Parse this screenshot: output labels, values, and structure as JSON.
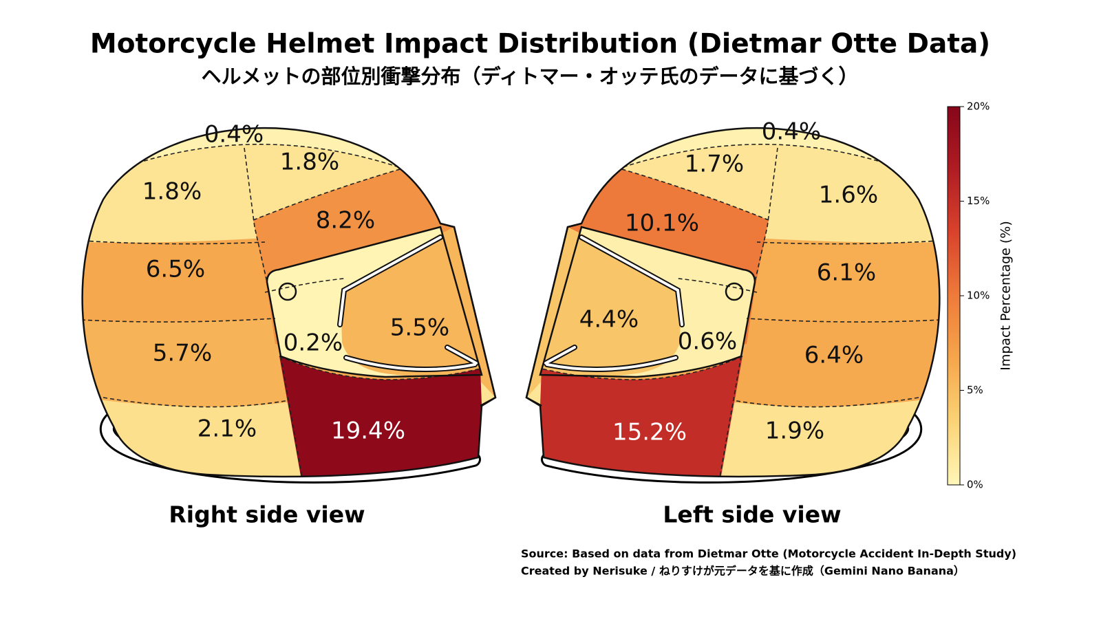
{
  "chart_data": {
    "type": "helmet-map",
    "title": "Motorcycle Helmet Impact Distribution (Dietmar Otte Data)",
    "subtitle": "ヘルメットの部位別衝撃分布（ディトマー・オッテ氏のデータに基づく）",
    "views": [
      {
        "label": "Right side view",
        "values": [
          0.4,
          1.8,
          1.8,
          6.5,
          8.2,
          5.7,
          0.2,
          5.5,
          2.1,
          19.4
        ],
        "value_labels": [
          "0.4%",
          "1.8%",
          "1.8%",
          "6.5%",
          "8.2%",
          "5.7%",
          "0.2%",
          "5.5%",
          "2.1%",
          "19.4%"
        ]
      },
      {
        "label": "Left side view",
        "values": [
          0.4,
          1.6,
          1.7,
          6.1,
          10.1,
          6.4,
          0.6,
          4.4,
          1.9,
          15.2
        ],
        "value_labels": [
          "0.4%",
          "1.6%",
          "1.7%",
          "6.1%",
          "10.1%",
          "6.4%",
          "0.6%",
          "4.4%",
          "1.9%",
          "15.2%"
        ]
      }
    ],
    "colorbar": {
      "label": "Impact Percentage (%)",
      "lim": [
        0,
        20
      ],
      "ticks": [
        {
          "value": 0,
          "label": "0%"
        },
        {
          "value": 5,
          "label": "5%"
        },
        {
          "value": 10,
          "label": "10%"
        },
        {
          "value": 15,
          "label": "15%"
        },
        {
          "value": 20,
          "label": "20%"
        }
      ],
      "colormap": [
        "#fff6b8",
        "#fbd376",
        "#f6a64c",
        "#ee7b3a",
        "#d9432c",
        "#b01c23",
        "#860619"
      ]
    },
    "notes": [
      "Source: Based on data from Dietmar Otte (Motorcycle Accident In-Depth Study)",
      "Created by Nerisuke / ねりすけが元データを基に作成（Gemini Nano Banana）"
    ]
  }
}
